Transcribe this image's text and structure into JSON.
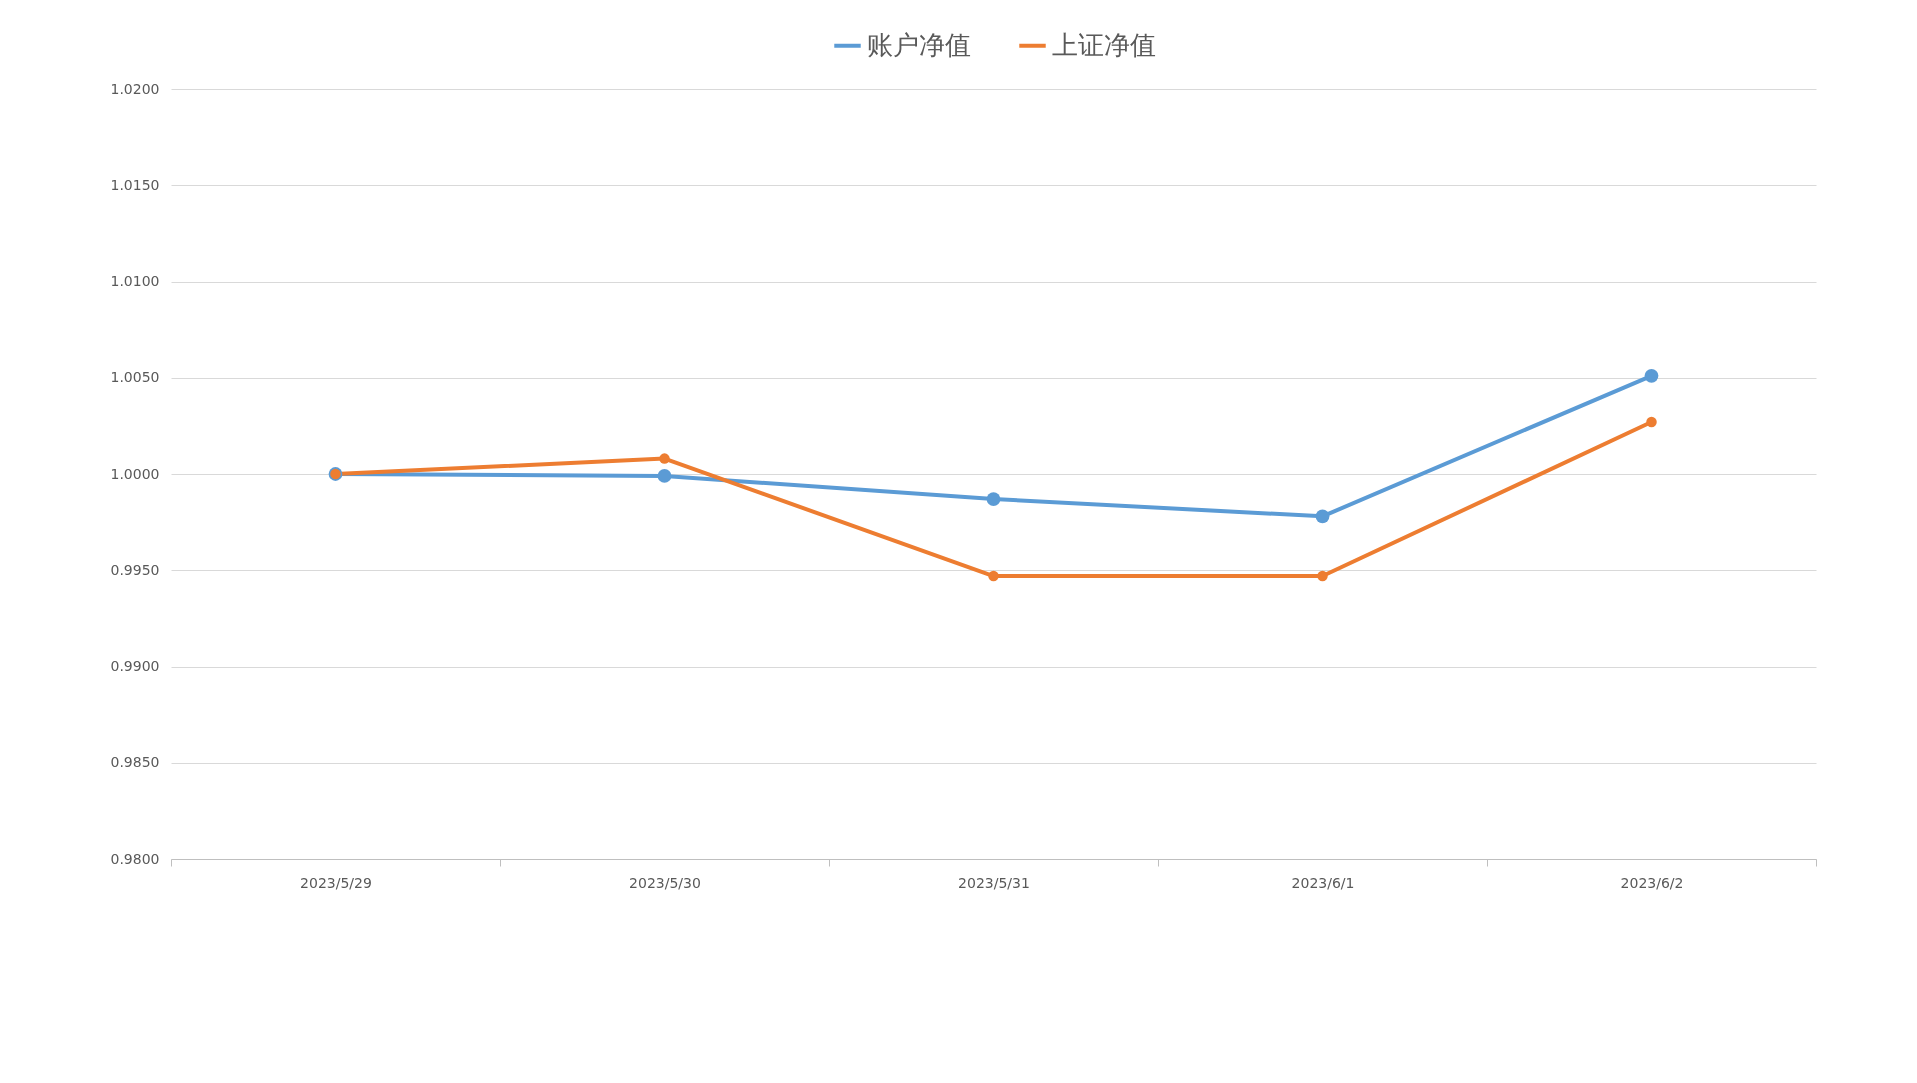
{
  "chart_data": {
    "type": "line",
    "categories": [
      "2023/5/29",
      "2023/5/30",
      "2023/5/31",
      "2023/6/1",
      "2023/6/2"
    ],
    "series": [
      {
        "name": "账户净值",
        "color": "#5b9bd5",
        "values": [
          1.0,
          0.9999,
          0.9987,
          0.9978,
          1.0051
        ]
      },
      {
        "name": "上证净值",
        "color": "#ed7d31",
        "values": [
          1.0,
          1.0008,
          0.9947,
          0.9947,
          1.0027
        ]
      }
    ],
    "ylim": [
      0.98,
      1.02
    ],
    "yticks": [
      {
        "value": 0.98,
        "label": "0.9800"
      },
      {
        "value": 0.985,
        "label": "0.9850"
      },
      {
        "value": 0.99,
        "label": "0.9900"
      },
      {
        "value": 0.995,
        "label": "0.9950"
      },
      {
        "value": 1.0,
        "label": "1.0000"
      },
      {
        "value": 1.005,
        "label": "1.0050"
      },
      {
        "value": 1.01,
        "label": "1.0100"
      },
      {
        "value": 1.015,
        "label": "1.0150"
      },
      {
        "value": 1.02,
        "label": "1.0200"
      }
    ],
    "grid": "y",
    "legend": "top",
    "marker": "circle",
    "line_style": "solid"
  }
}
